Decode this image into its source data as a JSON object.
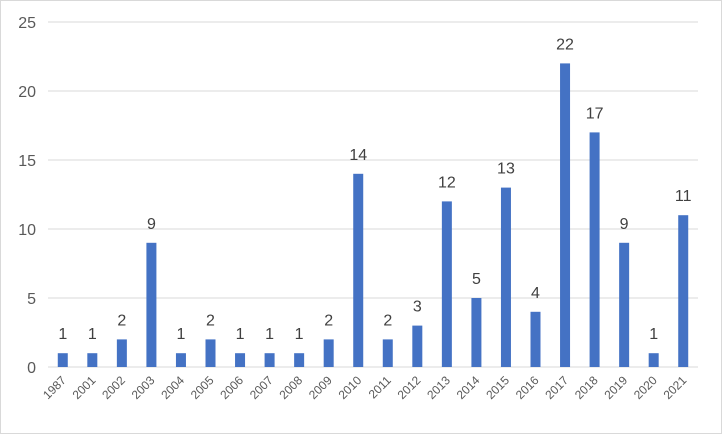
{
  "chart_data": {
    "type": "bar",
    "categories": [
      "1987",
      "2001",
      "2002",
      "2003",
      "2004",
      "2005",
      "2006",
      "2007",
      "2008",
      "2009",
      "2010",
      "2011",
      "2012",
      "2013",
      "2014",
      "2015",
      "2016",
      "2017",
      "2018",
      "2019",
      "2020",
      "2021"
    ],
    "values": [
      1,
      1,
      2,
      9,
      1,
      2,
      1,
      1,
      1,
      2,
      14,
      2,
      3,
      12,
      5,
      13,
      4,
      22,
      17,
      9,
      1,
      11
    ],
    "title": "",
    "xlabel": "",
    "ylabel": "",
    "ylim": [
      0,
      25
    ],
    "yticks": [
      0,
      5,
      10,
      15,
      20,
      25
    ],
    "grid": "horizontal",
    "data_labels": true,
    "legend": "none",
    "bar_color": "#4472c4",
    "grid_color": "#d9d9d9"
  }
}
